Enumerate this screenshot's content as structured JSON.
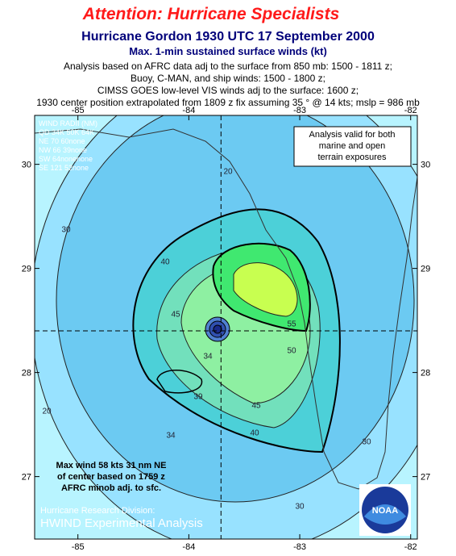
{
  "header": {
    "alert": "Attention:  Hurricane Specialists",
    "title": "Hurricane Gordon 1930 UTC 17 September 2000",
    "subtitle": "Max. 1-min sustained surface winds (kt)",
    "notes": [
      "Analysis based on AFRC data adj to the surface from 850 mb: 1500 - 1811 z;",
      "Buoy, C-MAN, and ship winds: 1500 - 1800 z;",
      "CIMSS GOES low-level VIS winds adj to the surface: 1600 z;",
      "1930  center position extrapolated from 1809 z fix assuming 35 ° @ 14 kts; mslp = 986 mb"
    ]
  },
  "map": {
    "lon_lim": [
      -85.39,
      -81.94
    ],
    "lat_lim": [
      26.4,
      30.47
    ],
    "lon_ticks": [
      -85,
      -84,
      -83,
      -82
    ],
    "lat_ticks": [
      27,
      28,
      29,
      30
    ],
    "center": [
      -83.71,
      28.4
    ],
    "wind_radii": [
      "WIND RADII (NM)",
      "QD 34K 50K 64K",
      "NE  70  60none",
      "NW  66  39none",
      "SW  64nonenone",
      "SE 121  52none"
    ],
    "validity_note": [
      "Analysis valid for both",
      "marine and open",
      "terrain exposures"
    ],
    "max_wind_note": [
      "Max wind 58 kts 31 nm NE",
      "of center based on 1759 z",
      "AFRC minob adj. to sfc."
    ],
    "credit": [
      "Hurricane Research Division:",
      "HWIND Experimental Analysis"
    ],
    "logo": "NOAA",
    "contour_labels": [
      "20",
      "30",
      "40",
      "45",
      "55",
      "50",
      "45",
      "40",
      "34",
      "39",
      "34",
      "30",
      "20",
      "30"
    ]
  }
}
